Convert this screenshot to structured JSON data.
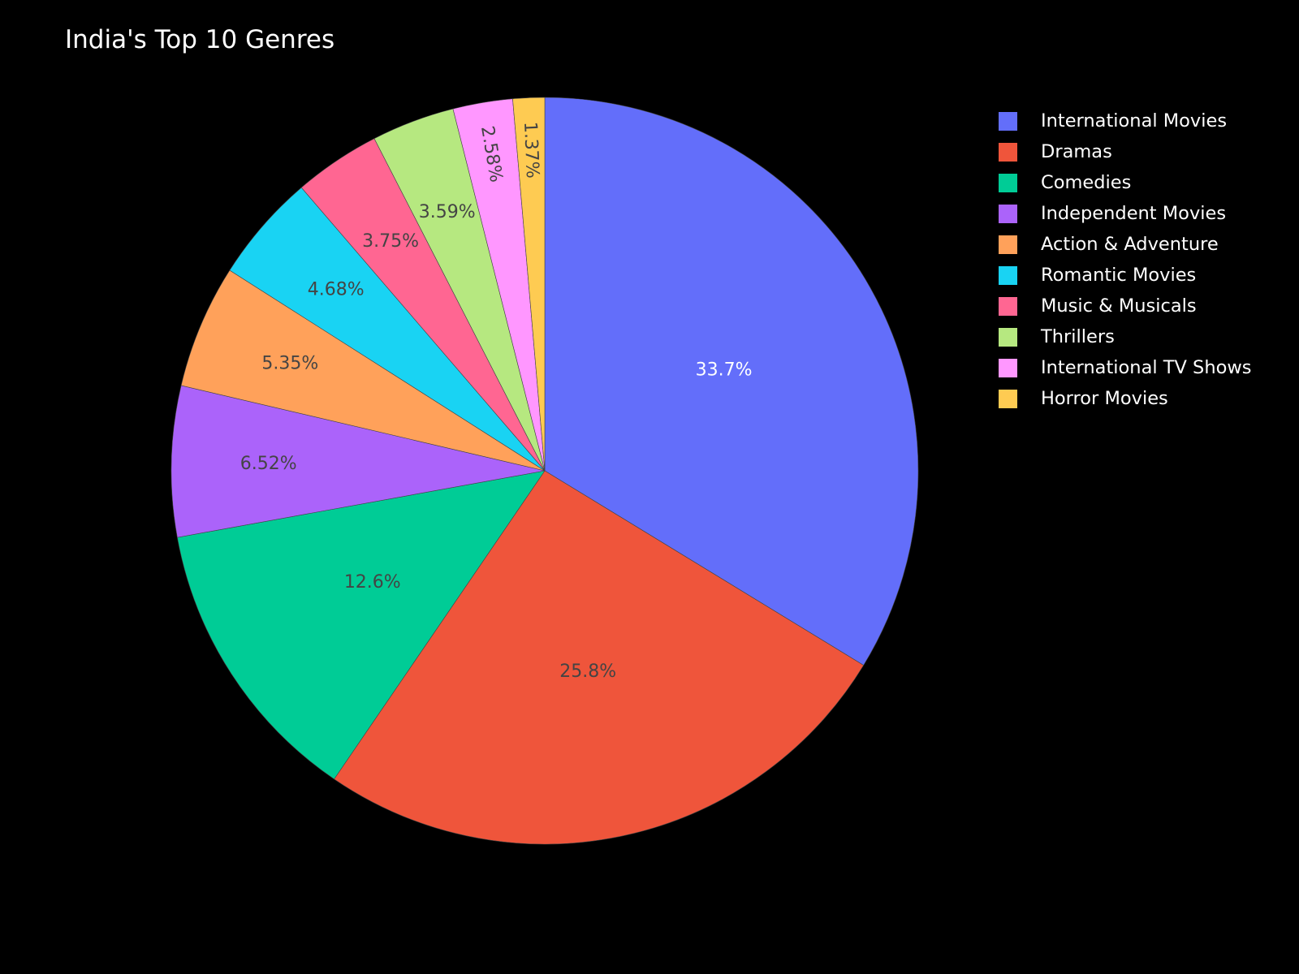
{
  "chart_data": {
    "type": "pie",
    "title": "India's Top 10 Genres",
    "direction": "clockwise",
    "start_angle": "12 o'clock",
    "sort": "descending",
    "legend_position": "top-right",
    "background": "#000000",
    "slices": [
      {
        "label": "International Movies",
        "percent": 33.7,
        "display": "33.7%",
        "color": "#636efa",
        "label_color": "#ffffff"
      },
      {
        "label": "Dramas",
        "percent": 25.8,
        "display": "25.8%",
        "color": "#ef553b",
        "label_color": "#444444"
      },
      {
        "label": "Comedies",
        "percent": 12.6,
        "display": "12.6%",
        "color": "#00cc96",
        "label_color": "#444444"
      },
      {
        "label": "Independent Movies",
        "percent": 6.52,
        "display": "6.52%",
        "color": "#ab63fa",
        "label_color": "#444444"
      },
      {
        "label": "Action & Adventure",
        "percent": 5.35,
        "display": "5.35%",
        "color": "#ffa15a",
        "label_color": "#444444"
      },
      {
        "label": "Romantic Movies",
        "percent": 4.68,
        "display": "4.68%",
        "color": "#19d3f3",
        "label_color": "#444444"
      },
      {
        "label": "Music & Musicals",
        "percent": 3.75,
        "display": "3.75%",
        "color": "#ff6692",
        "label_color": "#444444"
      },
      {
        "label": "Thrillers",
        "percent": 3.59,
        "display": "3.59%",
        "color": "#b6e880",
        "label_color": "#444444"
      },
      {
        "label": "International TV Shows",
        "percent": 2.58,
        "display": "2.58%",
        "color": "#ff97ff",
        "label_color": "#444444"
      },
      {
        "label": "Horror Movies",
        "percent": 1.37,
        "display": "1.37%",
        "color": "#fecb52",
        "label_color": "#444444"
      }
    ]
  }
}
